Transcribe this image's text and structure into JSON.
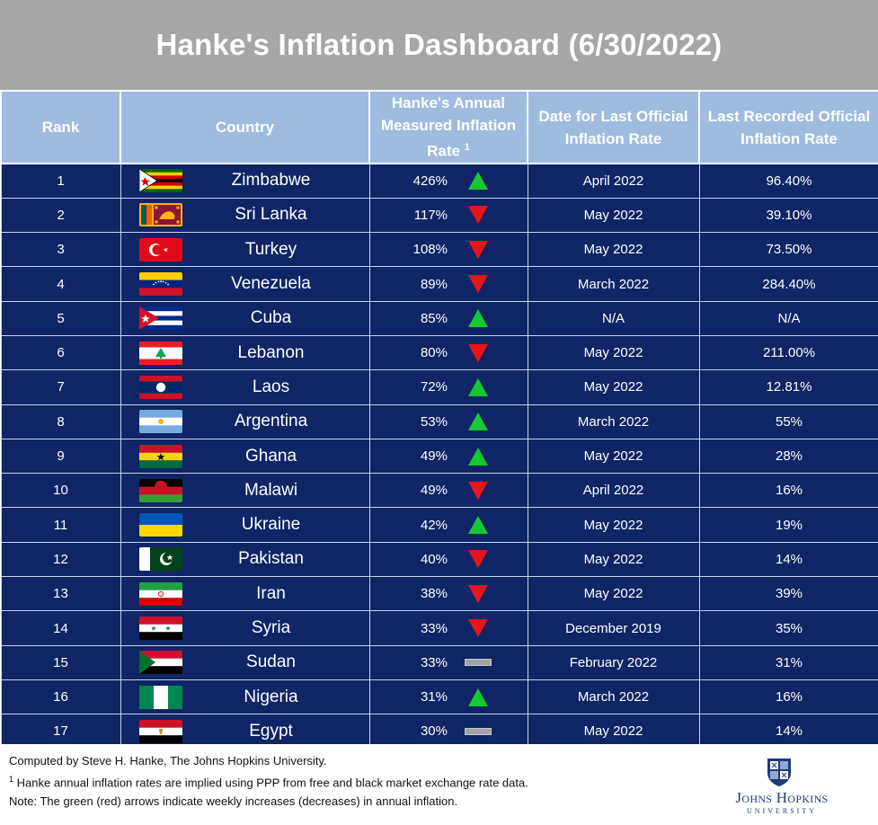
{
  "title": "Hanke's Inflation Dashboard (6/30/2022)",
  "headers": {
    "rank": "Rank",
    "country": "Country",
    "hanke_line1": "Hanke's Annual",
    "hanke_line2": "Measured Inflation",
    "hanke_line3": "Rate",
    "hanke_sup": "1",
    "date_line1": "Date for Last Official",
    "date_line2": "Inflation Rate",
    "official_line1": "Last Recorded Official",
    "official_line2": "Inflation Rate"
  },
  "rows": [
    {
      "rank": "1",
      "country": "Zimbabwe",
      "hanke_rate": "426%",
      "trend": "up",
      "date": "April 2022",
      "official": "96.40%",
      "flag": "zimbabwe-flag"
    },
    {
      "rank": "2",
      "country": "Sri Lanka",
      "hanke_rate": "117%",
      "trend": "down",
      "date": "May 2022",
      "official": "39.10%",
      "flag": "sri-lanka-flag"
    },
    {
      "rank": "3",
      "country": "Turkey",
      "hanke_rate": "108%",
      "trend": "down",
      "date": "May 2022",
      "official": "73.50%",
      "flag": "turkey-flag"
    },
    {
      "rank": "4",
      "country": "Venezuela",
      "hanke_rate": "89%",
      "trend": "down",
      "date": "March 2022",
      "official": "284.40%",
      "flag": "venezuela-flag"
    },
    {
      "rank": "5",
      "country": "Cuba",
      "hanke_rate": "85%",
      "trend": "up",
      "date": "N/A",
      "official": "N/A",
      "flag": "cuba-flag"
    },
    {
      "rank": "6",
      "country": "Lebanon",
      "hanke_rate": "80%",
      "trend": "down",
      "date": "May 2022",
      "official": "211.00%",
      "flag": "lebanon-flag"
    },
    {
      "rank": "7",
      "country": "Laos",
      "hanke_rate": "72%",
      "trend": "up",
      "date": "May 2022",
      "official": "12.81%",
      "flag": "laos-flag"
    },
    {
      "rank": "8",
      "country": "Argentina",
      "hanke_rate": "53%",
      "trend": "up",
      "date": "March 2022",
      "official": "55%",
      "flag": "argentina-flag"
    },
    {
      "rank": "9",
      "country": "Ghana",
      "hanke_rate": "49%",
      "trend": "up",
      "date": "May 2022",
      "official": "28%",
      "flag": "ghana-flag"
    },
    {
      "rank": "10",
      "country": "Malawi",
      "hanke_rate": "49%",
      "trend": "down",
      "date": "April 2022",
      "official": "16%",
      "flag": "malawi-flag"
    },
    {
      "rank": "11",
      "country": "Ukraine",
      "hanke_rate": "42%",
      "trend": "up",
      "date": "May 2022",
      "official": "19%",
      "flag": "ukraine-flag"
    },
    {
      "rank": "12",
      "country": "Pakistan",
      "hanke_rate": "40%",
      "trend": "down",
      "date": "May 2022",
      "official": "14%",
      "flag": "pakistan-flag"
    },
    {
      "rank": "13",
      "country": "Iran",
      "hanke_rate": "38%",
      "trend": "down",
      "date": "May 2022",
      "official": "39%",
      "flag": "iran-flag"
    },
    {
      "rank": "14",
      "country": "Syria",
      "hanke_rate": "33%",
      "trend": "down",
      "date": "December 2019",
      "official": "35%",
      "flag": "syria-flag"
    },
    {
      "rank": "15",
      "country": "Sudan",
      "hanke_rate": "33%",
      "trend": "flat",
      "date": "February 2022",
      "official": "31%",
      "flag": "sudan-flag"
    },
    {
      "rank": "16",
      "country": "Nigeria",
      "hanke_rate": "31%",
      "trend": "up",
      "date": "March 2022",
      "official": "16%",
      "flag": "nigeria-flag"
    },
    {
      "rank": "17",
      "country": "Egypt",
      "hanke_rate": "30%",
      "trend": "flat",
      "date": "May 2022",
      "official": "14%",
      "flag": "egypt-flag"
    }
  ],
  "footer": {
    "line1": "Computed by Steve H. Hanke, The Johns Hopkins University.",
    "line2_sup": "1",
    "line2": " Hanke annual inflation rates are implied using PPP from free and black market exchange rate data.",
    "line3": "Note: The green (red) arrows indicate weekly increases (decreases) in annual inflation.",
    "logo_name": "Johns Hopkins",
    "logo_sub": "UNIVERSITY"
  },
  "colors": {
    "title_bg": "#a6a6a6",
    "header_bg": "#9fbbe0",
    "row_bg": "#0f2566",
    "up": "#16c832",
    "down": "#e8141b",
    "flat": "#a0a3a8"
  }
}
